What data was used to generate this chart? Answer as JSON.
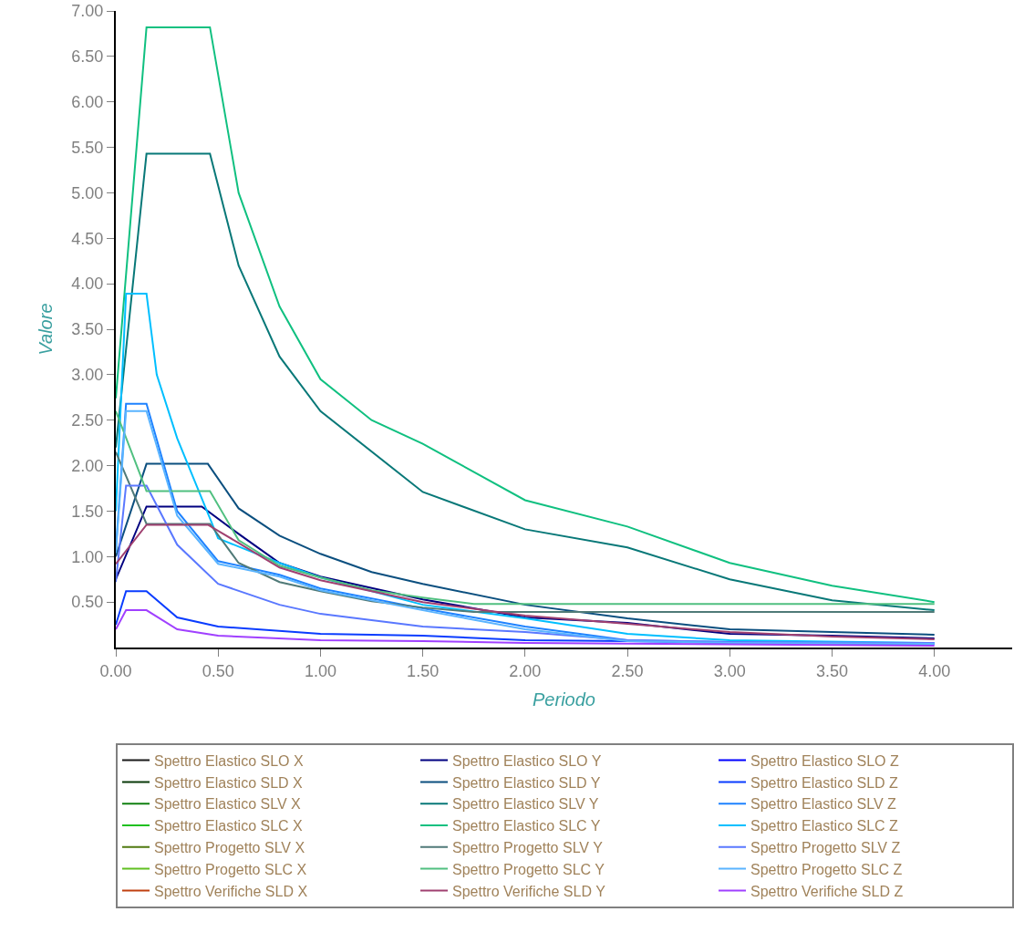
{
  "chart_data": {
    "type": "line",
    "xlabel": "Periodo",
    "ylabel": "Valore",
    "xlim": [
      0,
      4.38
    ],
    "xticks": [
      {
        "value": 0,
        "label": "0.00"
      },
      {
        "value": 0.5,
        "label": "0.50"
      },
      {
        "value": 1,
        "label": "1.00"
      },
      {
        "value": 1.5,
        "label": "1.50"
      },
      {
        "value": 2,
        "label": "2.00"
      },
      {
        "value": 2.5,
        "label": "2.50"
      },
      {
        "value": 3,
        "label": "3.00"
      },
      {
        "value": 3.5,
        "label": "3.50"
      },
      {
        "value": 4,
        "label": "4.00"
      }
    ],
    "ylim": [
      0,
      7
    ],
    "yticks": [
      {
        "value": 0.5,
        "label": "0.50"
      },
      {
        "value": 1,
        "label": "1.00"
      },
      {
        "value": 1.5,
        "label": "1.50"
      },
      {
        "value": 2,
        "label": "2.00"
      },
      {
        "value": 2.5,
        "label": "2.50"
      },
      {
        "value": 3,
        "label": "3.00"
      },
      {
        "value": 3.5,
        "label": "3.50"
      },
      {
        "value": 4,
        "label": "4.00"
      },
      {
        "value": 4.5,
        "label": "4.50"
      },
      {
        "value": 5,
        "label": "5.00"
      },
      {
        "value": 5.5,
        "label": "5.50"
      },
      {
        "value": 6,
        "label": "6.00"
      },
      {
        "value": 6.5,
        "label": "6.50"
      },
      {
        "value": 7,
        "label": "7.00"
      }
    ],
    "legend": "bottom",
    "marker": "none",
    "line_style": "solid",
    "series": [
      {
        "name": "Spettro Elastico SLO X",
        "color": "#1a1a1a"
      },
      {
        "name": "Spettro Elastico SLO Y",
        "color": "#000080",
        "x": [
          0,
          0.15,
          0.42,
          0.6,
          0.8,
          1.0,
          1.5,
          2.0,
          2.5,
          3.0,
          3.5,
          4.0
        ],
        "values": [
          0.75,
          1.55,
          1.55,
          1.25,
          0.93,
          0.78,
          0.53,
          0.33,
          0.27,
          0.15,
          0.13,
          0.1
        ]
      },
      {
        "name": "Spettro Elastico SLO Z",
        "color": "#0000ff"
      },
      {
        "name": "Spettro Elastico SLD X",
        "color": "#0a3a0a"
      },
      {
        "name": "Spettro Elastico SLD Y",
        "color": "#0b4f7f",
        "x": [
          0,
          0.15,
          0.45,
          0.6,
          0.8,
          1.0,
          1.25,
          1.5,
          2.0,
          2.5,
          3.0,
          3.5,
          4.0
        ],
        "values": [
          1.0,
          2.02,
          2.02,
          1.53,
          1.23,
          1.03,
          0.83,
          0.7,
          0.47,
          0.32,
          0.2,
          0.17,
          0.14
        ]
      },
      {
        "name": "Spettro Elastico SLD Z",
        "color": "#0a3cff",
        "x": [
          0,
          0.05,
          0.15,
          0.3,
          0.5,
          1.0,
          1.5,
          2.0,
          2.5,
          3.0,
          4.0
        ],
        "values": [
          0.25,
          0.62,
          0.62,
          0.33,
          0.23,
          0.15,
          0.13,
          0.08,
          0.07,
          0.05,
          0.04
        ]
      },
      {
        "name": "Spettro Elastico SLV X",
        "color": "#108010"
      },
      {
        "name": "Spettro Elastico SLV Y",
        "color": "#087878",
        "x": [
          0,
          0.15,
          0.46,
          0.6,
          0.8,
          1.0,
          1.5,
          2.0,
          2.5,
          3.0,
          3.5,
          4.0
        ],
        "values": [
          2.2,
          5.43,
          5.43,
          4.2,
          3.2,
          2.6,
          1.71,
          1.3,
          1.1,
          0.75,
          0.52,
          0.41
        ]
      },
      {
        "name": "Spettro Elastico SLV Z",
        "color": "#1e82ff",
        "x": [
          0,
          0.05,
          0.15,
          0.3,
          0.5,
          0.8,
          1.0,
          1.5,
          2.0,
          2.5,
          3.0,
          4.0
        ],
        "values": [
          1.07,
          2.68,
          2.68,
          1.5,
          0.95,
          0.8,
          0.65,
          0.43,
          0.23,
          0.08,
          0.06,
          0.04
        ]
      },
      {
        "name": "Spettro Elastico SLC X",
        "color": "#20c020"
      },
      {
        "name": "Spettro Elastico SLC Y",
        "color": "#10c080",
        "x": [
          0,
          0.15,
          0.46,
          0.6,
          0.8,
          1.0,
          1.25,
          1.5,
          2.0,
          2.5,
          3.0,
          3.5,
          4.0
        ],
        "values": [
          2.74,
          6.82,
          6.82,
          5.0,
          3.75,
          2.95,
          2.5,
          2.24,
          1.62,
          1.33,
          0.93,
          0.68,
          0.5
        ]
      },
      {
        "name": "Spettro Elastico SLC Z",
        "color": "#00bfff",
        "x": [
          0,
          0.05,
          0.15,
          0.2,
          0.3,
          0.5,
          0.8,
          1.0,
          1.5,
          2.0,
          2.5,
          3.0,
          4.0
        ],
        "values": [
          1.5,
          3.89,
          3.89,
          3.0,
          2.3,
          1.2,
          0.93,
          0.77,
          0.47,
          0.32,
          0.15,
          0.08,
          0.05
        ]
      },
      {
        "name": "Spettro Progetto SLV X",
        "color": "#507a10"
      },
      {
        "name": "Spettro Progetto SLV Y",
        "color": "#507a78",
        "x": [
          0,
          0.15,
          0.46,
          0.6,
          0.8,
          1.0,
          1.25,
          1.5,
          1.75,
          4.0
        ],
        "values": [
          2.15,
          1.36,
          1.36,
          0.93,
          0.72,
          0.62,
          0.51,
          0.44,
          0.39,
          0.39
        ]
      },
      {
        "name": "Spettro Progetto SLV Z",
        "color": "#5a78ff",
        "x": [
          0,
          0.05,
          0.15,
          0.3,
          0.5,
          0.8,
          1.0,
          1.5,
          2.0,
          2.5,
          3.0,
          4.0
        ],
        "values": [
          0.72,
          1.78,
          1.78,
          1.13,
          0.7,
          0.47,
          0.37,
          0.23,
          0.17,
          0.08,
          0.06,
          0.05
        ]
      },
      {
        "name": "Spettro Progetto SLC X",
        "color": "#60c020"
      },
      {
        "name": "Spettro Progetto SLC Y",
        "color": "#50c080",
        "x": [
          0,
          0.15,
          0.46,
          0.6,
          0.8,
          1.0,
          1.25,
          1.5,
          1.75,
          4.0
        ],
        "values": [
          2.6,
          1.72,
          1.72,
          1.18,
          0.9,
          0.77,
          0.63,
          0.55,
          0.48,
          0.48
        ]
      },
      {
        "name": "Spettro Progetto SLC Z",
        "color": "#5ab4ff",
        "x": [
          0,
          0.05,
          0.15,
          0.3,
          0.5,
          0.8,
          1.0,
          1.5,
          2.0,
          2.5,
          3.0,
          4.0
        ],
        "values": [
          1.04,
          2.6,
          2.6,
          1.45,
          0.92,
          0.78,
          0.63,
          0.41,
          0.2,
          0.07,
          0.05,
          0.04
        ]
      },
      {
        "name": "Spettro Verifiche SLD X",
        "color": "#c04010"
      },
      {
        "name": "Spettro Verifiche SLD Y",
        "color": "#a04070",
        "x": [
          0,
          0.15,
          0.45,
          0.6,
          0.8,
          1.0,
          1.5,
          2.0,
          2.5,
          3.0,
          3.5,
          4.0
        ],
        "values": [
          0.92,
          1.35,
          1.35,
          1.15,
          0.88,
          0.74,
          0.5,
          0.35,
          0.26,
          0.17,
          0.12,
          0.09
        ]
      },
      {
        "name": "Spettro Verifiche SLD Z",
        "color": "#a040ff",
        "x": [
          0,
          0.05,
          0.15,
          0.3,
          0.5,
          1.0,
          1.5,
          2.0,
          4.0
        ],
        "values": [
          0.2,
          0.41,
          0.41,
          0.2,
          0.13,
          0.08,
          0.07,
          0.05,
          0.02
        ]
      }
    ]
  }
}
